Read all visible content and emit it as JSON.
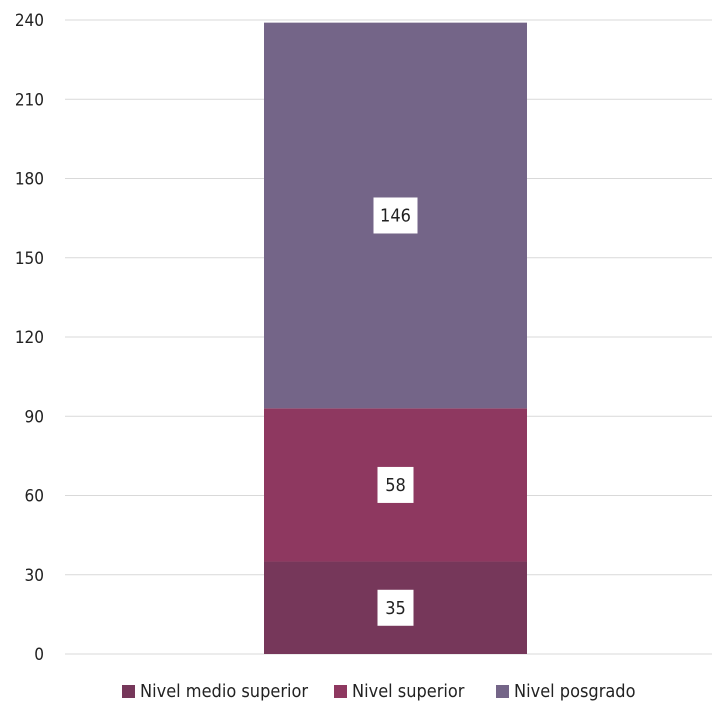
{
  "chart_data": {
    "type": "bar",
    "stacked": true,
    "categories": [
      ""
    ],
    "series": [
      {
        "name": "Nivel medio superior",
        "values": [
          35
        ],
        "color": "#76375a"
      },
      {
        "name": "Nivel superior",
        "values": [
          58
        ],
        "color": "#8e3860"
      },
      {
        "name": "Nivel posgrado",
        "values": [
          146
        ],
        "color": "#746588"
      }
    ],
    "data_labels": [
      "35",
      "58",
      "146"
    ],
    "ylim": [
      0,
      240
    ],
    "yticks": [
      "0",
      "30",
      "60",
      "90",
      "120",
      "150",
      "180",
      "210",
      "240"
    ],
    "grid": true,
    "legend": "bottom",
    "title": "",
    "xlabel": "",
    "ylabel": ""
  }
}
